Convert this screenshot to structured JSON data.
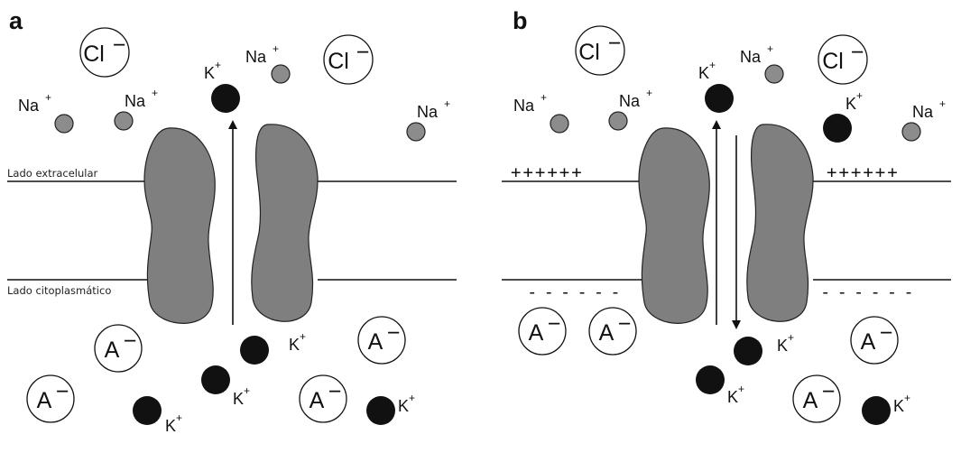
{
  "panels": [
    {
      "letter": "a",
      "side_labels": {
        "extracellular": "Lado extracelular",
        "cytoplasmic": "Lado citoplasmático"
      },
      "charges": {
        "top": "",
        "bottom": ""
      },
      "ions": {
        "cl_1": {
          "base": "Cl",
          "charge": "−"
        },
        "cl_2": {
          "base": "Cl",
          "charge": "−"
        },
        "na_1": {
          "base": "Na",
          "charge": "+"
        },
        "na_2": {
          "base": "Na",
          "charge": "+"
        },
        "na_3": {
          "base": "Na",
          "charge": "+"
        },
        "na_4": {
          "base": "Na",
          "charge": "+"
        },
        "k_ext": {
          "base": "K",
          "charge": "+"
        },
        "k_in_1": {
          "base": "K",
          "charge": "+"
        },
        "k_in_2": {
          "base": "K",
          "charge": "+"
        },
        "k_in_3": {
          "base": "K",
          "charge": "+"
        },
        "k_in_4": {
          "base": "K",
          "charge": "+"
        },
        "a_1": {
          "base": "A",
          "charge": "−"
        },
        "a_2": {
          "base": "A",
          "charge": "−"
        },
        "a_3": {
          "base": "A",
          "charge": "−"
        },
        "a_4": {
          "base": "A",
          "charge": "−"
        }
      }
    },
    {
      "letter": "b",
      "side_labels": {
        "extracellular": "",
        "cytoplasmic": ""
      },
      "charges": {
        "top": "++++++",
        "bottom": "------"
      },
      "ions": {
        "cl_1": {
          "base": "Cl",
          "charge": "−"
        },
        "cl_2": {
          "base": "Cl",
          "charge": "−"
        },
        "na_1": {
          "base": "Na",
          "charge": "+"
        },
        "na_2": {
          "base": "Na",
          "charge": "+"
        },
        "na_3": {
          "base": "Na",
          "charge": "+"
        },
        "na_4": {
          "base": "Na",
          "charge": "+"
        },
        "k_ext_1": {
          "base": "K",
          "charge": "+"
        },
        "k_ext_2": {
          "base": "K",
          "charge": "+"
        },
        "k_in_1": {
          "base": "K",
          "charge": "+"
        },
        "k_in_2": {
          "base": "K",
          "charge": "+"
        },
        "k_in_3": {
          "base": "K",
          "charge": "+"
        },
        "a_1": {
          "base": "A",
          "charge": "−"
        },
        "a_2": {
          "base": "A",
          "charge": "−"
        },
        "a_3": {
          "base": "A",
          "charge": "−"
        },
        "a_4": {
          "base": "A",
          "charge": "−"
        }
      }
    }
  ],
  "colors": {
    "channel_protein": "#7f7f7f",
    "k_ion": "#111111",
    "na_ion": "#8c8c8c",
    "membrane_line": "#111111"
  }
}
